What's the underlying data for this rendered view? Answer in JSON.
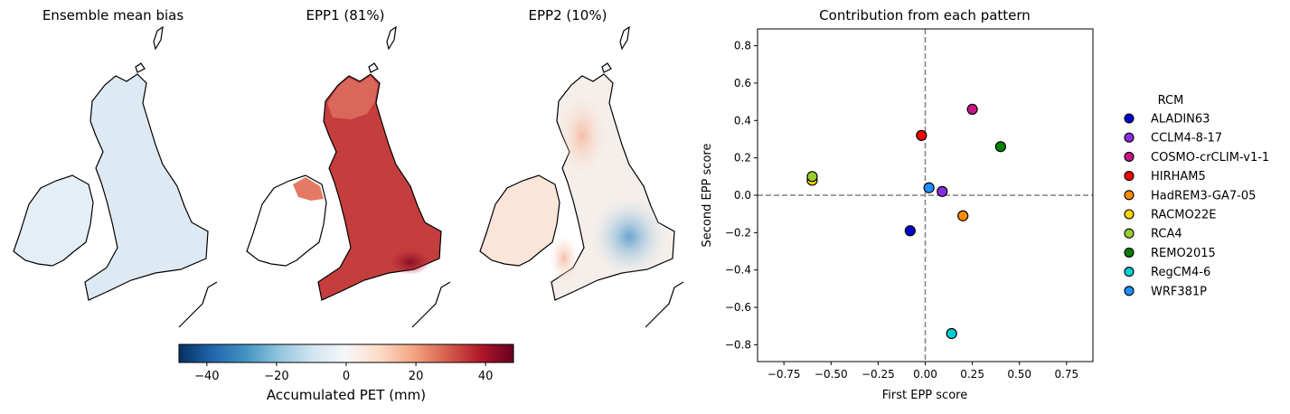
{
  "map_panels": [
    {
      "title": "Ensemble mean bias",
      "pattern": "bias"
    },
    {
      "title": "EPP1 (81%)",
      "pattern": "epp1"
    },
    {
      "title": "EPP2 (10%)",
      "pattern": "epp2"
    }
  ],
  "colorbar": {
    "label": "Accumulated PET (mm)",
    "vmin": -48,
    "vmax": 48,
    "ticks": [
      -40,
      -20,
      0,
      20,
      40
    ],
    "tick_labels": [
      "−40",
      "−20",
      "0",
      "20",
      "40"
    ],
    "colormap": "RdBu_r"
  },
  "chart_data": {
    "type": "scatter",
    "title": "Contribution from each pattern",
    "xlabel": "First EPP score",
    "ylabel": "Second EPP score",
    "xlim": [
      -0.89,
      0.89
    ],
    "ylim": [
      -0.89,
      0.89
    ],
    "xticks": [
      -0.75,
      -0.5,
      -0.25,
      0.0,
      0.25,
      0.5,
      0.75
    ],
    "xtick_labels": [
      "−0.75",
      "−0.50",
      "−0.25",
      "0.00",
      "0.25",
      "0.50",
      "0.75"
    ],
    "yticks": [
      -0.8,
      -0.6,
      -0.4,
      -0.2,
      0.0,
      0.2,
      0.4,
      0.6,
      0.8
    ],
    "ytick_labels": [
      "−0.8",
      "−0.6",
      "−0.4",
      "−0.2",
      "0.0",
      "0.2",
      "0.4",
      "0.6",
      "0.8"
    ],
    "reference_lines": {
      "x": 0,
      "y": 0,
      "style": "dashed"
    },
    "legend": {
      "title": "RCM",
      "placement": "right outside"
    },
    "series": [
      {
        "name": "ALADIN63",
        "x": -0.08,
        "y": -0.19,
        "color": "#0000cd"
      },
      {
        "name": "CCLM4-8-17",
        "x": 0.09,
        "y": 0.02,
        "color": "#8a2be2"
      },
      {
        "name": "COSMO-crCLIM-v1-1",
        "x": 0.25,
        "y": 0.46,
        "color": "#c71585"
      },
      {
        "name": "HIRHAM5",
        "x": -0.02,
        "y": 0.32,
        "color": "#ff0000"
      },
      {
        "name": "HadREM3-GA7-05",
        "x": 0.2,
        "y": -0.11,
        "color": "#ff8c00"
      },
      {
        "name": "RACMO22E",
        "x": -0.6,
        "y": 0.08,
        "color": "#ffd700"
      },
      {
        "name": "RCA4",
        "x": -0.6,
        "y": 0.1,
        "color": "#9acd32"
      },
      {
        "name": "REMO2015",
        "x": 0.4,
        "y": 0.26,
        "color": "#008000"
      },
      {
        "name": "RegCM4-6",
        "x": 0.14,
        "y": -0.74,
        "color": "#00ced1"
      },
      {
        "name": "WRF381P",
        "x": 0.02,
        "y": 0.04,
        "color": "#1e90ff"
      }
    ]
  }
}
